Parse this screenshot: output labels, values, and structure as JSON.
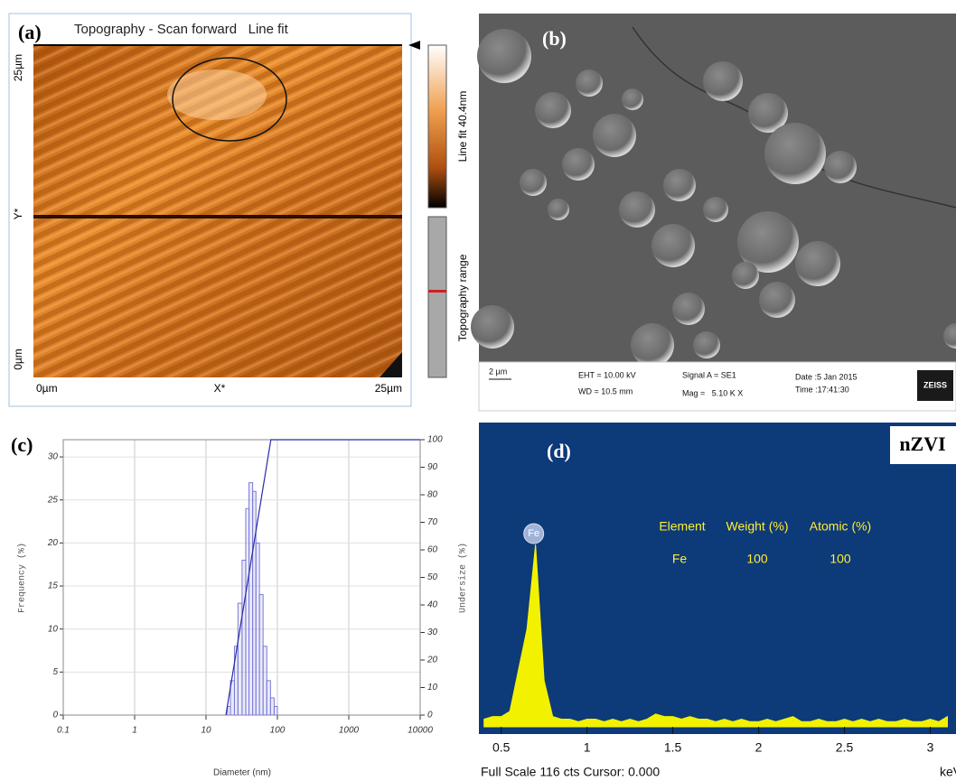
{
  "panels": {
    "a": {
      "label": "(a)",
      "title": "Topography - Scan forward   Line fit",
      "y_top": "25µm",
      "y_mid": "Y*",
      "y_bottom": "0µm",
      "x_left": "0µm",
      "x_mid": "X*",
      "x_right": "25µm",
      "colorbar_label": "Line fit 40.4nm",
      "range_label": "Topography range"
    },
    "b": {
      "label": "(b)",
      "scale": "2 µm",
      "eht": "EHT = 10.00 kV",
      "wd": "WD = 10.5 mm",
      "signal": "Signal A = SE1",
      "mag": "Mag =   5.10 K X",
      "date": "Date :5 Jan 2015",
      "time": "Time :17:41:30",
      "brand": "ZEISS"
    }
  },
  "chart_data": [
    {
      "type": "histogram",
      "label": "(c)",
      "x_label": "Diameter (nm)",
      "y_label": "Frequency (%)",
      "y2_label": "Undersize (%)",
      "log_x": true,
      "grid": true,
      "xlim": [
        0.1,
        10000
      ],
      "xticks": [
        0.1,
        1,
        10,
        100,
        1000,
        10000
      ],
      "ylim": [
        0,
        32
      ],
      "yticks": [
        0,
        5,
        10,
        15,
        20,
        25,
        30
      ],
      "y2lim": [
        0,
        100
      ],
      "y2ticks": [
        0,
        10,
        20,
        30,
        40,
        50,
        60,
        70,
        80,
        90,
        100
      ],
      "bins": [
        20,
        22,
        25,
        28,
        32,
        36,
        40,
        45,
        50,
        56,
        63,
        71,
        80,
        90,
        100
      ],
      "values": [
        1,
        4,
        8,
        13,
        18,
        24,
        27,
        26,
        20,
        14,
        8,
        4,
        2,
        1
      ],
      "color": "#7a7ad8",
      "cumulative": {
        "axis": "y2",
        "color": "#2a2aa8",
        "x": [
          19,
          81,
          10000
        ],
        "values": [
          0,
          100,
          100
        ]
      }
    },
    {
      "type": "area",
      "label": "(d)",
      "tag": "nZVI",
      "footer": "Full Scale 116 cts Cursor: 0.000",
      "x_unit": "keV",
      "background": "#0d3a78",
      "color": "#f2f200",
      "xlim": [
        0.37,
        3.15
      ],
      "xticks": [
        0.5,
        1,
        1.5,
        2,
        2.5,
        3
      ],
      "ylim": [
        0,
        116
      ],
      "x": [
        0.4,
        0.45,
        0.5,
        0.55,
        0.6,
        0.65,
        0.7,
        0.75,
        0.8,
        0.85,
        0.9,
        0.95,
        1,
        1.05,
        1.1,
        1.15,
        1.2,
        1.25,
        1.3,
        1.35,
        1.4,
        1.45,
        1.5,
        1.55,
        1.6,
        1.65,
        1.7,
        1.75,
        1.8,
        1.85,
        1.9,
        1.95,
        2,
        2.05,
        2.1,
        2.15,
        2.2,
        2.25,
        2.3,
        2.35,
        2.4,
        2.45,
        2.5,
        2.55,
        2.6,
        2.65,
        2.7,
        2.75,
        2.8,
        2.85,
        2.9,
        2.95,
        3,
        3.05,
        3.1
      ],
      "values": [
        3,
        4,
        4,
        6,
        22,
        38,
        71,
        18,
        4,
        3,
        3,
        2,
        3,
        3,
        2,
        3,
        2,
        3,
        2,
        3,
        5,
        4,
        4,
        3,
        4,
        3,
        3,
        2,
        3,
        2,
        3,
        2,
        2,
        3,
        2,
        3,
        4,
        2,
        2,
        3,
        2,
        2,
        3,
        2,
        3,
        2,
        3,
        2,
        2,
        3,
        2,
        2,
        3,
        2,
        4
      ],
      "peak_label": {
        "text": "Fe",
        "x": 0.7
      },
      "table": {
        "header": [
          "Element",
          "Weight (%)",
          "Atomic (%)"
        ],
        "rows": [
          [
            "Fe",
            100,
            100
          ]
        ]
      }
    }
  ]
}
